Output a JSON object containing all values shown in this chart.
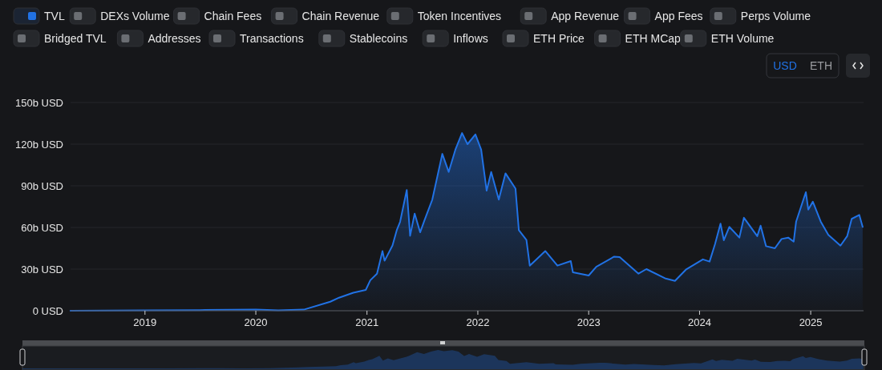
{
  "chart_data": {
    "type": "area",
    "x": [
      "2018-05-01",
      "2019-01-01",
      "2019-07-01",
      "2020-01-01",
      "2020-03-15",
      "2020-06-07",
      "2020-09-02",
      "2020-10-01",
      "2020-11-17",
      "2020-12-28",
      "2021-01-12",
      "2021-02-03",
      "2021-02-21",
      "2021-02-28",
      "2021-03-26",
      "2021-04-09",
      "2021-04-20",
      "2021-05-12",
      "2021-05-23",
      "2021-06-07",
      "2021-06-25",
      "2021-07-09",
      "2021-08-04",
      "2021-09-06",
      "2021-09-27",
      "2021-10-19",
      "2021-11-10",
      "2021-11-28",
      "2021-12-24",
      "2022-01-12",
      "2022-01-30",
      "2022-02-14",
      "2022-03-11",
      "2022-04-02",
      "2022-05-05",
      "2022-05-16",
      "2022-06-10",
      "2022-06-21",
      "2022-08-11",
      "2022-09-20",
      "2022-11-03",
      "2022-11-10",
      "2023-01-01",
      "2023-01-26",
      "2023-03-26",
      "2023-04-13",
      "2023-06-14",
      "2023-07-10",
      "2023-09-09",
      "2023-10-12",
      "2023-11-17",
      "2024-01-12",
      "2024-02-03",
      "2024-02-21",
      "2024-03-10",
      "2024-03-21",
      "2024-04-08",
      "2024-05-11",
      "2024-05-26",
      "2024-07-09",
      "2024-07-20",
      "2024-08-07",
      "2024-09-05",
      "2024-09-27",
      "2024-10-19",
      "2024-11-06",
      "2024-11-14",
      "2024-12-16",
      "2024-12-24",
      "2025-01-08",
      "2025-02-03",
      "2025-02-28",
      "2025-04-09",
      "2025-05-01",
      "2025-05-16",
      "2025-06-10",
      "2025-06-21"
    ],
    "series": [
      {
        "name": "TVL",
        "color": "#2172e5",
        "values": [
          0,
          0.3,
          0.5,
          0.8,
          0.3,
          0.8,
          6.5,
          9.4,
          13,
          15,
          22,
          26.7,
          43,
          36,
          47,
          58,
          64,
          87,
          54,
          70,
          56.5,
          65,
          80,
          113,
          100,
          116,
          128,
          120,
          127,
          116,
          86.5,
          100,
          80,
          99,
          88,
          58,
          51,
          32.5,
          43,
          32.5,
          35.8,
          27.7,
          25.4,
          31.7,
          39,
          38.7,
          26.7,
          30,
          23.4,
          21.5,
          29.6,
          37,
          35.4,
          48,
          62.7,
          50.8,
          60.4,
          52.7,
          67,
          53.7,
          61.3,
          46.5,
          45,
          51.7,
          52.7,
          49.8,
          64.2,
          85.4,
          72.9,
          78.6,
          64.2,
          54.6,
          46.9,
          53.7,
          66.2,
          69,
          60.4
        ]
      }
    ],
    "xlim": [
      "2018-05-01",
      "2025-06-24"
    ],
    "xticks": [
      "2019",
      "2020",
      "2021",
      "2022",
      "2023",
      "2024",
      "2025"
    ],
    "ylim": [
      0,
      150
    ],
    "yticks": [
      {
        "value": 0,
        "label": "0 USD"
      },
      {
        "value": 30,
        "label": "30b USD"
      },
      {
        "value": 60,
        "label": "60b USD"
      },
      {
        "value": 90,
        "label": "90b USD"
      },
      {
        "value": 120,
        "label": "120b USD"
      },
      {
        "value": 150,
        "label": "150b USD"
      }
    ],
    "grid": "y",
    "legend": "top left",
    "annotations": [
      "DEXs Volume",
      "Chain Fees",
      "Chain Revenue",
      "Token Incentives",
      "App Revenue",
      "App Fees",
      "Perps Volume",
      "Bridged TVL",
      "Addresses",
      "Transactions",
      "Stablecoins",
      "Inflows",
      "ETH Price",
      "ETH MCap",
      "ETH Volume",
      "USD",
      "ETH"
    ]
  }
}
